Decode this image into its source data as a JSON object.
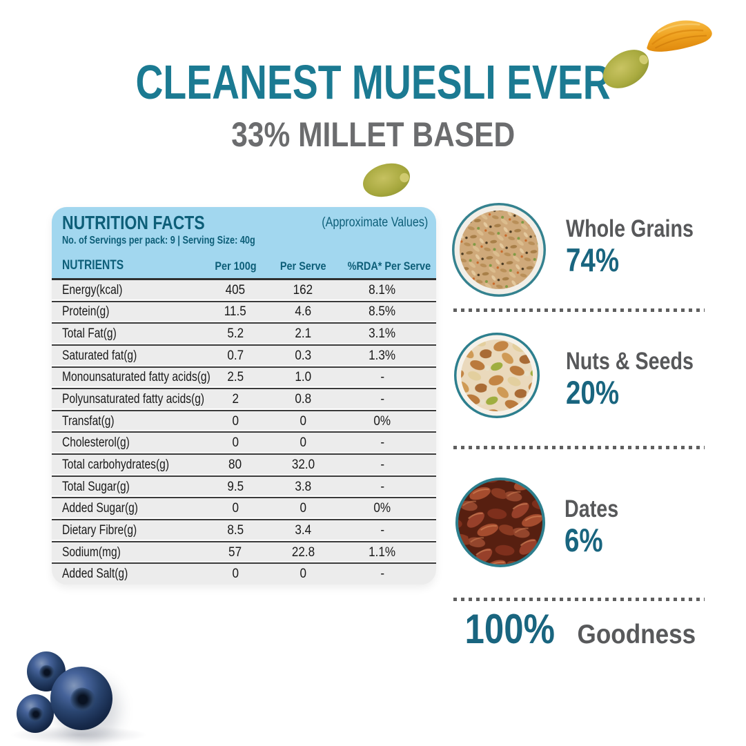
{
  "header": {
    "title": "CLEANEST MUESLI EVER",
    "subtitle": "33% MILLET BASED"
  },
  "colors": {
    "title_teal": "#1b7a92",
    "subtitle_gray": "#6b6c6e",
    "panel_header_blue": "#a2d7ef",
    "panel_text_teal": "#0d5e78",
    "row_gray": "#ececec",
    "percent_teal": "#19657f",
    "label_gray": "#58595b"
  },
  "nutrition": {
    "title": "NUTRITION FACTS",
    "approx_note": "(Approximate Values)",
    "servings_line": "No. of Servings per pack: 9 | Serving Size: 40g",
    "columns": {
      "nutrients": "NUTRIENTS",
      "per_100g": "Per\n100g",
      "per_serve": "Per\nServe",
      "rda": "%RDA*\nPer Serve"
    },
    "rows": [
      {
        "name": "Energy(kcal)",
        "per100": "405",
        "serve": "162",
        "rda": "8.1%"
      },
      {
        "name": "Protein(g)",
        "per100": "11.5",
        "serve": "4.6",
        "rda": "8.5%"
      },
      {
        "name": "Total Fat(g)",
        "per100": "5.2",
        "serve": "2.1",
        "rda": "3.1%"
      },
      {
        "name": "Saturated fat(g)",
        "per100": "0.7",
        "serve": "0.3",
        "rda": "1.3%"
      },
      {
        "name": "Monounsaturated fatty acids(g)",
        "per100": "2.5",
        "serve": "1.0",
        "rda": "-"
      },
      {
        "name": "Polyunsaturated fatty acids(g)",
        "per100": "2",
        "serve": "0.8",
        "rda": "-"
      },
      {
        "name": "Transfat(g)",
        "per100": "0",
        "serve": "0",
        "rda": "0%"
      },
      {
        "name": "Cholesterol(g)",
        "per100": "0",
        "serve": "0",
        "rda": "-"
      },
      {
        "name": "Total carbohydrates(g)",
        "per100": "80",
        "serve": "32.0",
        "rda": "-"
      },
      {
        "name": "Total Sugar(g)",
        "per100": "9.5",
        "serve": "3.8",
        "rda": "-"
      },
      {
        "name": "Added Sugar(g)",
        "per100": "0",
        "serve": "0",
        "rda": "0%"
      },
      {
        "name": "Dietary Fibre(g)",
        "per100": "8.5",
        "serve": "3.4",
        "rda": "-"
      },
      {
        "name": "Sodium(mg)",
        "per100": "57",
        "serve": "22.8",
        "rda": "1.1%"
      },
      {
        "name": "Added Salt(g)",
        "per100": "0",
        "serve": "0",
        "rda": "-"
      }
    ]
  },
  "ingredients": [
    {
      "name": "Whole Grains",
      "pct": "74%"
    },
    {
      "name": "Nuts & Seeds",
      "pct": "20%"
    },
    {
      "name": "Dates",
      "pct": "6%"
    }
  ],
  "footer": {
    "pct": "100%",
    "label": "Goodness"
  }
}
